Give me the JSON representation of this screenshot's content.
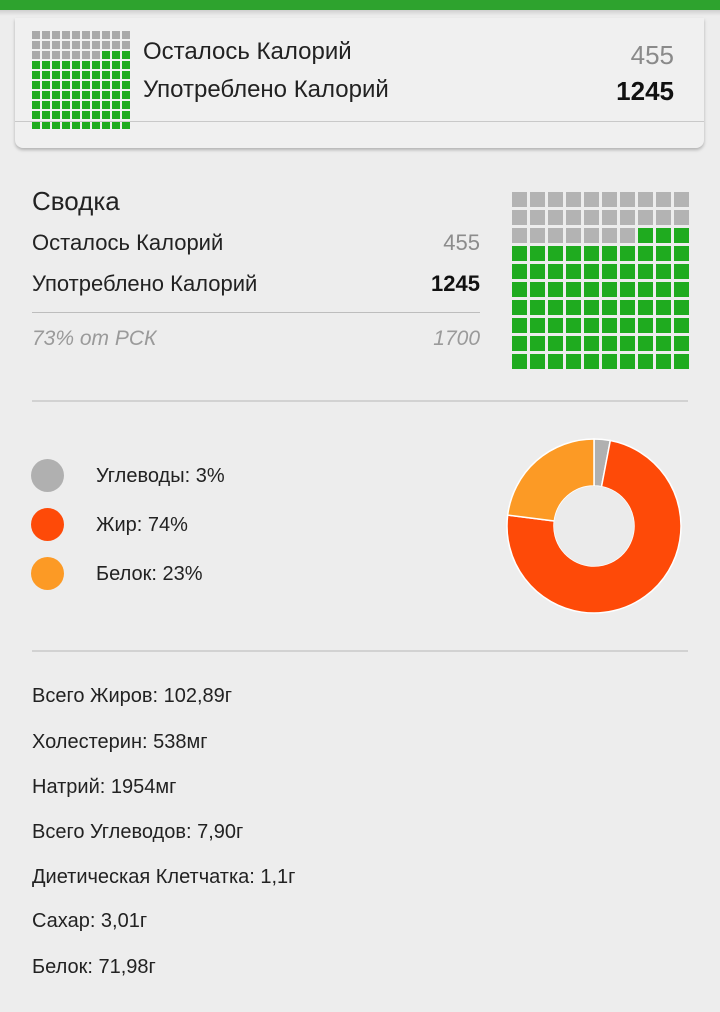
{
  "header": {
    "remaining_label": "Осталось Калорий",
    "remaining_value": "455",
    "used_label": "Употреблено Калорий",
    "used_value": "1245"
  },
  "summary": {
    "title": "Сводка",
    "remaining_label": "Осталось Калорий",
    "remaining_value": "455",
    "used_label": "Употреблено Калорий",
    "used_value": "1245",
    "percent_label": "73% от РСК",
    "rsk_value": "1700",
    "filled_fraction": 0.73
  },
  "macros": [
    {
      "label": "Углеводы: 3%",
      "percent": 3,
      "color": "#b0b0b0"
    },
    {
      "label": "Жир: 74%",
      "percent": 74,
      "color": "#fe4a08"
    },
    {
      "label": "Белок: 23%",
      "percent": 23,
      "color": "#fc9a25"
    }
  ],
  "nutrients": [
    "Всего Жиров: 102,89г",
    "Холестерин: 538мг",
    "Натрий: 1954мг",
    "Всего Углеводов: 7,90г",
    "Диетическая Клетчатка: 1,1г",
    "Сахар: 3,01г",
    "Белок: 71,98г"
  ],
  "colors": {
    "accent": "#2ea32e",
    "grid_filled": "#1fab1f",
    "grid_empty": "#a9a9a9"
  }
}
